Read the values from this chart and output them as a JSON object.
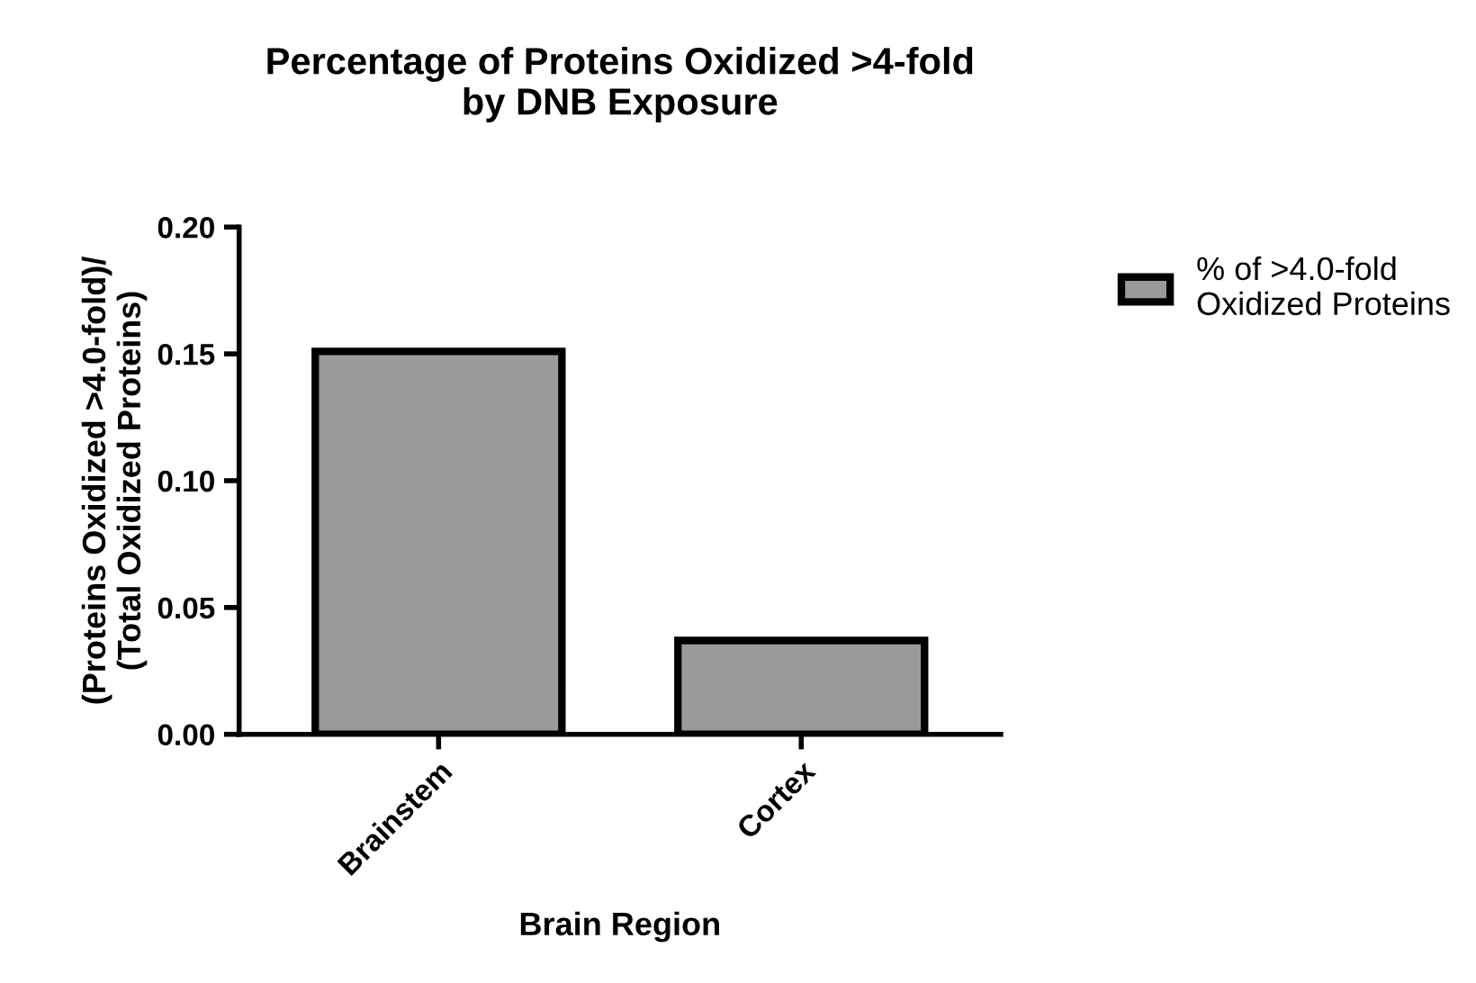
{
  "chart_data": {
    "type": "bar",
    "title": "Percentage of Proteins Oxidized >4-fold\nby DNB Exposure",
    "xlabel": "Brain Region",
    "ylabel": "(Proteins Oxidized >4.0-fold)/\n(Total Oxidized Proteins)",
    "categories": [
      "Brainstem",
      "Cortex"
    ],
    "series": [
      {
        "name": "% of >4.0-fold\nOxidized Proteins",
        "color": "#9a9a9a",
        "values": [
          0.151,
          0.037
        ]
      }
    ],
    "ylim": [
      0,
      0.2
    ],
    "yticks": [
      {
        "value": 0,
        "label": "0.00"
      },
      {
        "value": 0.05,
        "label": "0.05"
      },
      {
        "value": 0.1,
        "label": "0.10"
      },
      {
        "value": 0.15,
        "label": "0.15"
      },
      {
        "value": 0.2,
        "label": "0.20"
      }
    ],
    "grid": false,
    "legend": "top right"
  }
}
